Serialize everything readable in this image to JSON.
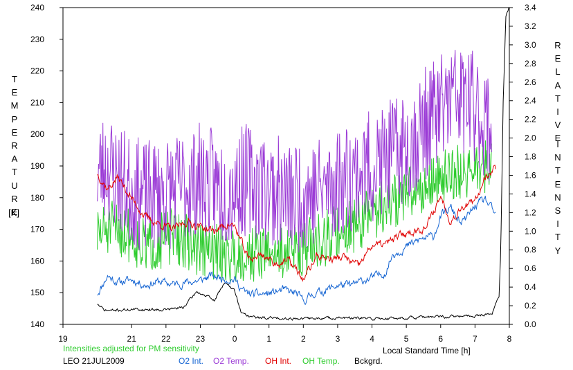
{
  "chart_data": {
    "type": "line",
    "xlabel": "Local Standard Time [h]",
    "left_axis_label_letters": [
      "T",
      "E",
      "M",
      "P",
      "E",
      "R",
      "A",
      "T",
      "U",
      "R",
      "E"
    ],
    "left_axis_unit": "[K]",
    "right_axis_label_letters": [
      "R",
      "E",
      "L",
      "A",
      "T",
      "I",
      "V",
      "E"
    ],
    "right_axis_label_letters_2": [
      "I",
      "N",
      "T",
      "E",
      "N",
      "S",
      "I",
      "T",
      "Y"
    ],
    "x_ticks": [
      "19",
      "21",
      "22",
      "23",
      "0",
      "1",
      "2",
      "3",
      "4",
      "5",
      "6",
      "7",
      "8"
    ],
    "x_tick_values": [
      19,
      21,
      22,
      23,
      24,
      25,
      26,
      27,
      28,
      29,
      30,
      31,
      32
    ],
    "xlim": [
      19,
      32
    ],
    "ylim": [
      140,
      240
    ],
    "y_ticks": [
      "140",
      "150",
      "160",
      "170",
      "180",
      "190",
      "200",
      "210",
      "220",
      "230",
      "240"
    ],
    "y2lim": [
      0.0,
      3.4
    ],
    "y2_ticks": [
      "0.0",
      "0.2",
      "0.4",
      "0.6",
      "0.8",
      "1.0",
      "1.2",
      "1.4",
      "1.6",
      "1.8",
      "2.0",
      "2.2",
      "2.4",
      "2.6",
      "2.8",
      "3.0",
      "3.2",
      "3.4"
    ],
    "note": "Intensities adjusted for PM sensitivity",
    "station": "LEO 21JUL2009",
    "colors": {
      "o2_int": "#1464d2",
      "o2_temp": "#9b3bd6",
      "oh_int": "#e00000",
      "oh_temp": "#2ecc2e",
      "bckgrd": "#000000",
      "note": "#2ecc2e"
    },
    "series": [
      {
        "name": "O2 Int.",
        "axis": "right",
        "key": "o2_int",
        "x": [
          20.0,
          20.3,
          20.6,
          21.0,
          21.4,
          21.8,
          22.2,
          22.6,
          23.0,
          23.3,
          23.6,
          23.9,
          24.0,
          24.3,
          24.6,
          25.0,
          25.4,
          25.8,
          26.0,
          26.3,
          26.6,
          27.0,
          27.4,
          27.8,
          28.0,
          28.4,
          28.6,
          29.0,
          29.4,
          29.8,
          30.0,
          30.3,
          30.6,
          31.0,
          31.3,
          31.6
        ],
        "y": [
          0.33,
          0.52,
          0.45,
          0.48,
          0.42,
          0.46,
          0.43,
          0.45,
          0.47,
          0.52,
          0.5,
          0.48,
          0.48,
          0.34,
          0.32,
          0.33,
          0.37,
          0.33,
          0.25,
          0.33,
          0.36,
          0.42,
          0.42,
          0.48,
          0.5,
          0.56,
          0.75,
          0.83,
          0.91,
          0.95,
          1.16,
          1.25,
          1.07,
          1.27,
          1.34,
          1.17
        ]
      },
      {
        "name": "O2 Temp.",
        "axis": "left",
        "key": "o2_temp",
        "x": [
          20.0,
          20.3,
          20.6,
          21.0,
          21.4,
          21.8,
          22.2,
          22.6,
          23.0,
          23.4,
          23.8,
          24.0,
          24.4,
          24.8,
          25.2,
          25.6,
          26.0,
          26.4,
          26.8,
          27.2,
          27.6,
          28.0,
          28.4,
          28.8,
          29.2,
          29.6,
          30.0,
          30.4,
          30.8,
          31.2,
          31.5
        ],
        "y": [
          188,
          190,
          186,
          182,
          180,
          181,
          182,
          184,
          186,
          184,
          182,
          184,
          186,
          184,
          182,
          180,
          181,
          182,
          184,
          186,
          188,
          190,
          192,
          195,
          198,
          204,
          208,
          212,
          210,
          206,
          200
        ],
        "amplitude": 18
      },
      {
        "name": "OH Int.",
        "axis": "right",
        "key": "oh_int",
        "x": [
          20.0,
          20.3,
          20.6,
          21.0,
          21.4,
          21.8,
          22.2,
          22.6,
          23.0,
          23.4,
          23.8,
          24.0,
          24.4,
          24.8,
          25.2,
          25.6,
          26.0,
          26.4,
          26.8,
          27.2,
          27.6,
          28.0,
          28.4,
          28.8,
          29.2,
          29.6,
          30.0,
          30.3,
          30.6,
          31.0,
          31.3,
          31.6
        ],
        "y": [
          1.62,
          1.45,
          1.58,
          1.35,
          1.15,
          1.08,
          1.02,
          1.1,
          1.05,
          1.0,
          1.08,
          1.05,
          0.7,
          0.75,
          0.65,
          0.68,
          0.48,
          0.74,
          0.7,
          0.72,
          0.62,
          0.85,
          0.86,
          0.95,
          1.0,
          1.05,
          1.38,
          1.1,
          1.27,
          1.3,
          1.6,
          1.68
        ]
      },
      {
        "name": "OH Temp.",
        "axis": "left",
        "key": "oh_temp",
        "x": [
          20.0,
          20.3,
          20.6,
          21.0,
          21.4,
          21.8,
          22.2,
          22.6,
          23.0,
          23.4,
          23.8,
          24.0,
          24.4,
          24.8,
          25.2,
          25.6,
          26.0,
          26.4,
          26.8,
          27.2,
          27.6,
          28.0,
          28.4,
          28.8,
          29.2,
          29.6,
          30.0,
          30.4,
          30.8,
          31.2,
          31.5
        ],
        "y": [
          168,
          170,
          170,
          168,
          164,
          166,
          168,
          166,
          164,
          163,
          162,
          162,
          162,
          163,
          163,
          163,
          164,
          166,
          168,
          170,
          172,
          175,
          178,
          180,
          182,
          184,
          186,
          188,
          188,
          190,
          188
        ],
        "amplitude": 9
      },
      {
        "name": "Bckgrd.",
        "axis": "right",
        "key": "bckgrd",
        "x": [
          20.0,
          20.2,
          20.5,
          21.0,
          21.5,
          22.0,
          22.5,
          22.9,
          23.2,
          23.4,
          23.7,
          24.0,
          24.2,
          24.5,
          24.8,
          25.0,
          26.0,
          27.0,
          28.0,
          29.0,
          30.0,
          31.0,
          31.5,
          31.7,
          31.75,
          31.82,
          31.9,
          32.0
        ],
        "y": [
          0.22,
          0.15,
          0.15,
          0.16,
          0.16,
          0.16,
          0.18,
          0.35,
          0.3,
          0.25,
          0.45,
          0.36,
          0.12,
          0.08,
          0.07,
          0.07,
          0.06,
          0.07,
          0.06,
          0.07,
          0.08,
          0.09,
          0.12,
          0.3,
          0.8,
          2.4,
          3.3,
          3.4
        ],
        "amplitude": 0.012
      }
    ]
  },
  "legend": {
    "station": "LEO 21JUL2009",
    "note": "Intensities adjusted for PM sensitivity",
    "items": [
      "O2 Int.",
      "O2 Temp.",
      "OH Int.",
      "OH Temp.",
      "Bckgrd."
    ],
    "xlabel": "Local Standard Time [h]"
  }
}
